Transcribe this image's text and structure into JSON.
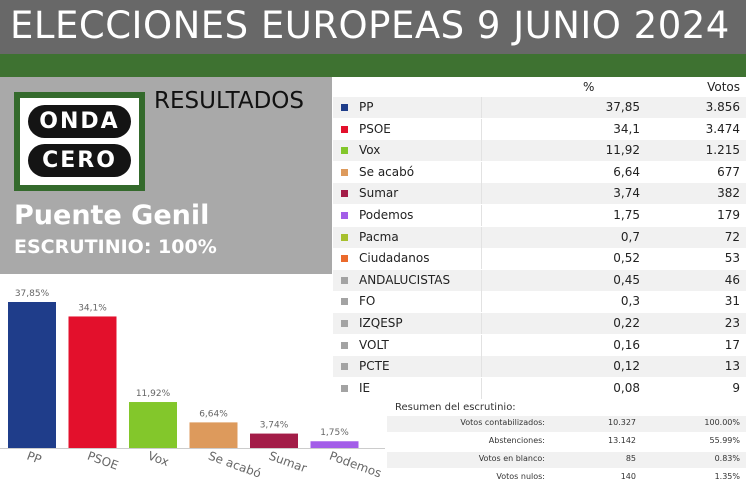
{
  "header": {
    "title": "ELECCIONES EUROPEAS 9 JUNIO 2024"
  },
  "logo": {
    "line1": "ONDA",
    "line2": "CERO"
  },
  "panel": {
    "heading": "RESULTADOS",
    "town": "Puente Genil",
    "scrutiny": "ESCRUTINIO: 100%"
  },
  "table": {
    "columns": [
      "",
      "%",
      "Votos"
    ],
    "rows": [
      {
        "party": "PP",
        "pct": "37,85",
        "votes": "3.856",
        "color": "#1f3d8a"
      },
      {
        "party": "PSOE",
        "pct": "34,1",
        "votes": "3.474",
        "color": "#e3102c"
      },
      {
        "party": "Vox",
        "pct": "11,92",
        "votes": "1.215",
        "color": "#83c72b"
      },
      {
        "party": "Se acabó",
        "pct": "6,64",
        "votes": "677",
        "color": "#dd9a5c"
      },
      {
        "party": "Sumar",
        "pct": "3,74",
        "votes": "382",
        "color": "#a31d48"
      },
      {
        "party": "Podemos",
        "pct": "1,75",
        "votes": "179",
        "color": "#a35ee8"
      },
      {
        "party": "Pacma",
        "pct": "0,7",
        "votes": "72",
        "color": "#a7c02e"
      },
      {
        "party": "Ciudadanos",
        "pct": "0,52",
        "votes": "53",
        "color": "#eb6a2c"
      },
      {
        "party": "ANDALUCISTAS",
        "pct": "0,45",
        "votes": "46",
        "color": "#a3a3a3"
      },
      {
        "party": "FO",
        "pct": "0,3",
        "votes": "31",
        "color": "#a3a3a3"
      },
      {
        "party": "IZQESP",
        "pct": "0,22",
        "votes": "23",
        "color": "#a3a3a3"
      },
      {
        "party": "VOLT",
        "pct": "0,16",
        "votes": "17",
        "color": "#a3a3a3"
      },
      {
        "party": "PCTE",
        "pct": "0,12",
        "votes": "13",
        "color": "#a3a3a3"
      },
      {
        "party": "IE",
        "pct": "0,08",
        "votes": "9",
        "color": "#a3a3a3"
      }
    ]
  },
  "summary": {
    "title": "Resumen del escrutinio:",
    "rows": [
      {
        "label": "Votos contabilizados:",
        "value": "10.327",
        "pct": "100.00%"
      },
      {
        "label": "Abstenciones:",
        "value": "13.142",
        "pct": "55.99%"
      },
      {
        "label": "Votos en blanco:",
        "value": "85",
        "pct": "0.83%"
      },
      {
        "label": "Votos nulos:",
        "value": "140",
        "pct": "1.35%"
      }
    ]
  },
  "chart_data": {
    "type": "bar",
    "categories": [
      "PP",
      "PSOE",
      "Vox",
      "Se acabó",
      "Sumar",
      "Podemos"
    ],
    "values": [
      37.85,
      34.1,
      11.92,
      6.64,
      3.74,
      1.75
    ],
    "data_labels": [
      "37,85%",
      "34,1%",
      "11,92%",
      "6,64%",
      "3,74%",
      "1,75%"
    ],
    "colors": [
      "#1f3d8a",
      "#e3102c",
      "#83c72b",
      "#dd9a5c",
      "#a31d48",
      "#a35ee8"
    ],
    "ylim": [
      0,
      37.85
    ],
    "grid": false,
    "legend": "none"
  }
}
